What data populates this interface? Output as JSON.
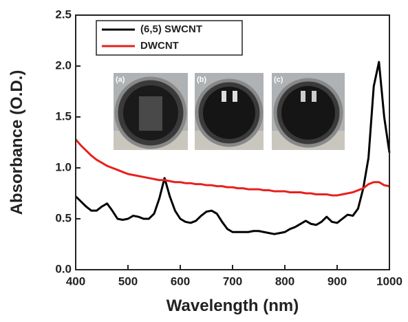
{
  "chart_data": {
    "type": "line",
    "x_label": "Wavelength (nm)",
    "y_label": "Absorbance (O.D.)",
    "x": [
      400,
      410,
      420,
      430,
      440,
      450,
      460,
      470,
      480,
      490,
      500,
      510,
      520,
      530,
      540,
      550,
      560,
      570,
      580,
      590,
      600,
      610,
      620,
      630,
      640,
      650,
      660,
      670,
      680,
      690,
      700,
      710,
      720,
      730,
      740,
      750,
      760,
      770,
      780,
      790,
      800,
      810,
      820,
      830,
      840,
      850,
      860,
      870,
      880,
      890,
      900,
      910,
      920,
      930,
      940,
      950,
      960,
      970,
      980,
      990,
      1000
    ],
    "series": [
      {
        "name": "(6,5) SWCNT",
        "color": "#000000",
        "values": [
          0.72,
          0.67,
          0.62,
          0.58,
          0.58,
          0.62,
          0.65,
          0.58,
          0.5,
          0.49,
          0.5,
          0.53,
          0.52,
          0.5,
          0.5,
          0.55,
          0.7,
          0.9,
          0.72,
          0.58,
          0.5,
          0.47,
          0.46,
          0.48,
          0.53,
          0.57,
          0.58,
          0.55,
          0.47,
          0.4,
          0.37,
          0.37,
          0.37,
          0.37,
          0.38,
          0.38,
          0.37,
          0.36,
          0.35,
          0.36,
          0.37,
          0.4,
          0.42,
          0.45,
          0.48,
          0.45,
          0.44,
          0.47,
          0.52,
          0.47,
          0.46,
          0.5,
          0.54,
          0.53,
          0.6,
          0.8,
          1.1,
          1.8,
          2.04,
          1.5,
          1.15
        ]
      },
      {
        "name": "DWCNT",
        "color": "#e8201c",
        "values": [
          1.28,
          1.22,
          1.17,
          1.12,
          1.08,
          1.05,
          1.02,
          1.0,
          0.98,
          0.96,
          0.94,
          0.93,
          0.92,
          0.91,
          0.9,
          0.89,
          0.88,
          0.88,
          0.87,
          0.86,
          0.86,
          0.85,
          0.85,
          0.84,
          0.84,
          0.83,
          0.83,
          0.82,
          0.82,
          0.81,
          0.81,
          0.8,
          0.8,
          0.79,
          0.79,
          0.79,
          0.78,
          0.78,
          0.77,
          0.77,
          0.77,
          0.76,
          0.76,
          0.76,
          0.75,
          0.75,
          0.74,
          0.74,
          0.74,
          0.73,
          0.73,
          0.74,
          0.75,
          0.76,
          0.78,
          0.8,
          0.84,
          0.86,
          0.86,
          0.83,
          0.82
        ]
      }
    ],
    "xlim": [
      400,
      1000
    ],
    "xticks": [
      400,
      500,
      600,
      700,
      800,
      900,
      1000
    ],
    "ylim": [
      0,
      2.5
    ],
    "yticks": [
      {
        "value": 0,
        "label": "0.0"
      },
      0.5,
      {
        "value": 1,
        "label": "1.0"
      },
      1.5,
      {
        "value": 2,
        "label": "2.0"
      },
      2.5
    ],
    "legend": "upper-left",
    "annotations": [
      "(a)",
      "(b)",
      "(c)"
    ]
  }
}
